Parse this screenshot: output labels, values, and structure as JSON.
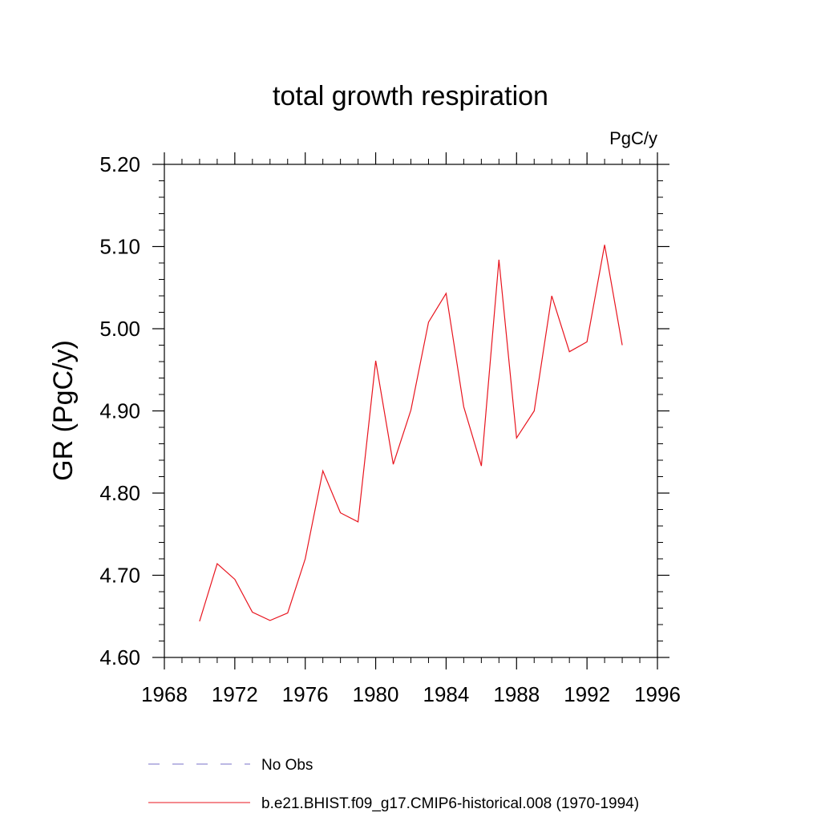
{
  "chart_data": {
    "type": "line",
    "title": "total growth respiration",
    "units_label": "PgC/y",
    "ylabel": "GR  (PgC/y)",
    "xlabel": "",
    "xlim": [
      1968,
      1996
    ],
    "ylim": [
      4.6,
      5.2
    ],
    "x_ticks": [
      "1968",
      "1972",
      "1976",
      "1980",
      "1984",
      "1988",
      "1992",
      "1996"
    ],
    "y_ticks": [
      "4.60",
      "4.70",
      "4.80",
      "4.90",
      "5.00",
      "5.10",
      "5.20"
    ],
    "grid": false,
    "legend_position": "bottom",
    "series": [
      {
        "name": "b.e21.BHIST.f09_g17.CMIP6-historical.008 (1970-1994)",
        "color": "#e8141e",
        "style": "solid",
        "x": [
          1970,
          1971,
          1972,
          1973,
          1974,
          1975,
          1976,
          1977,
          1978,
          1979,
          1980,
          1981,
          1982,
          1983,
          1984,
          1985,
          1986,
          1987,
          1988,
          1989,
          1990,
          1991,
          1992,
          1993,
          1994
        ],
        "y": [
          4.644,
          4.714,
          4.695,
          4.655,
          4.645,
          4.654,
          4.72,
          4.827,
          4.776,
          4.765,
          4.961,
          4.835,
          4.901,
          5.008,
          5.043,
          4.905,
          4.833,
          5.084,
          4.867,
          4.9,
          5.04,
          4.972,
          4.984,
          5.102,
          4.98
        ]
      }
    ],
    "legend": [
      {
        "label": "No Obs",
        "color": "#7a70c8",
        "style": "dashed"
      },
      {
        "label": "b.e21.BHIST.f09_g17.CMIP6-historical.008 (1970-1994)",
        "color": "#e8141e",
        "style": "solid"
      }
    ]
  }
}
